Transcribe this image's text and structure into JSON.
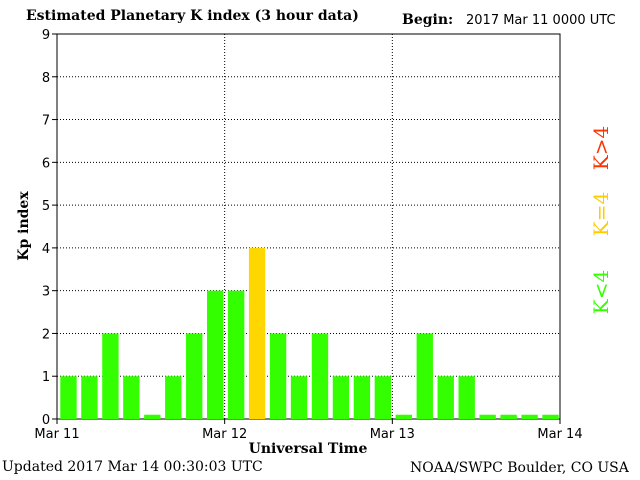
{
  "header": {
    "title": "Estimated Planetary K index (3 hour data)",
    "begin_label": "Begin:",
    "begin_value": "2017 Mar 11 0000 UTC"
  },
  "footer": {
    "updated": "Updated 2017 Mar 14 00:30:03 UTC",
    "credit": "NOAA/SWPC Boulder, CO USA"
  },
  "legend": [
    {
      "label": "K>4",
      "color": "#ff3300"
    },
    {
      "label": "K=4",
      "color": "#ffcc00"
    },
    {
      "label": "K<4",
      "color": "#33ff00"
    }
  ],
  "chart_data": {
    "type": "bar",
    "xlabel": "Universal Time",
    "ylabel": "Kp index",
    "ylim": [
      0,
      9
    ],
    "yticks": [
      0,
      1,
      2,
      3,
      4,
      5,
      6,
      7,
      8,
      9
    ],
    "xtick_labels": [
      "Mar 11",
      "Mar 12",
      "Mar 13",
      "Mar 14"
    ],
    "grid": "dotted, major ticks",
    "bar_interval_hours": 3,
    "values": [
      1,
      1,
      2,
      1,
      0.1,
      1,
      2,
      3,
      3,
      4,
      2,
      1,
      2,
      1,
      1,
      1,
      0.1,
      2,
      1,
      1,
      0.1,
      0.1,
      0.1,
      0.1
    ],
    "colors": {
      "below4": "#33ff00",
      "equal4": "#ffd700",
      "above4": "#ff3300"
    }
  }
}
